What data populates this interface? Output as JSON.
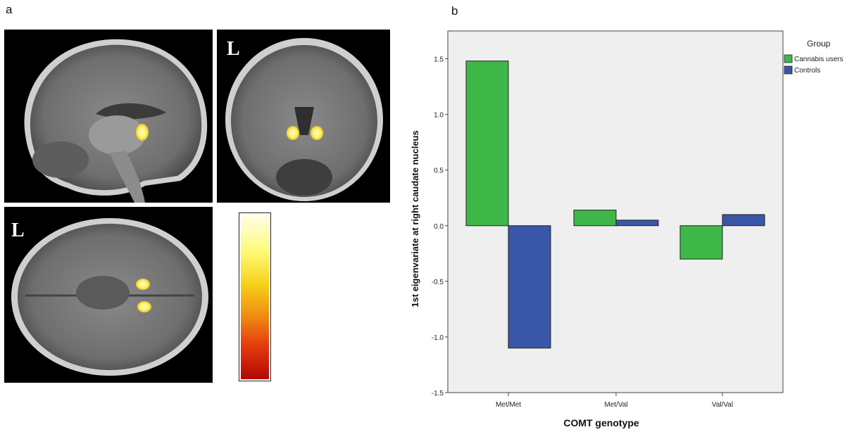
{
  "panels": {
    "a": "a",
    "b": "b"
  },
  "mri": {
    "orientation_label": "L",
    "colors": {
      "activation": "#fff36a",
      "activation_core": "#fffbd0",
      "brain": "#7a7a7a"
    }
  },
  "colorbar": {
    "colors": [
      "#fefee8",
      "#fdfb7a",
      "#f7d21a",
      "#f08a12",
      "#e23a0c",
      "#b40606"
    ]
  },
  "chart_data": {
    "type": "bar",
    "title": "",
    "xlabel": "COMT genotype",
    "ylabel": "1st eigenvariate at right caudate nucleus",
    "categories": [
      "Met/Met",
      "Met/Val",
      "Val/Val"
    ],
    "series": [
      {
        "name": "Cannabis users",
        "color": "#3db848",
        "values": [
          1.48,
          0.14,
          -0.3
        ]
      },
      {
        "name": "Controls",
        "color": "#3a56a8",
        "values": [
          -1.1,
          0.05,
          0.1
        ]
      }
    ],
    "legend_title": "Group",
    "legend_position": "right-top",
    "ylim": [
      -1.5,
      1.75
    ],
    "yticks": [
      "-1.5",
      "-1.0",
      "-0.5",
      "0.0",
      "0.5",
      "1.0",
      "1.5"
    ],
    "ytick_values": [
      -1.5,
      -1.0,
      -0.5,
      0.0,
      0.5,
      1.0,
      1.5
    ],
    "grid": false,
    "plot_background": "#efefef"
  }
}
